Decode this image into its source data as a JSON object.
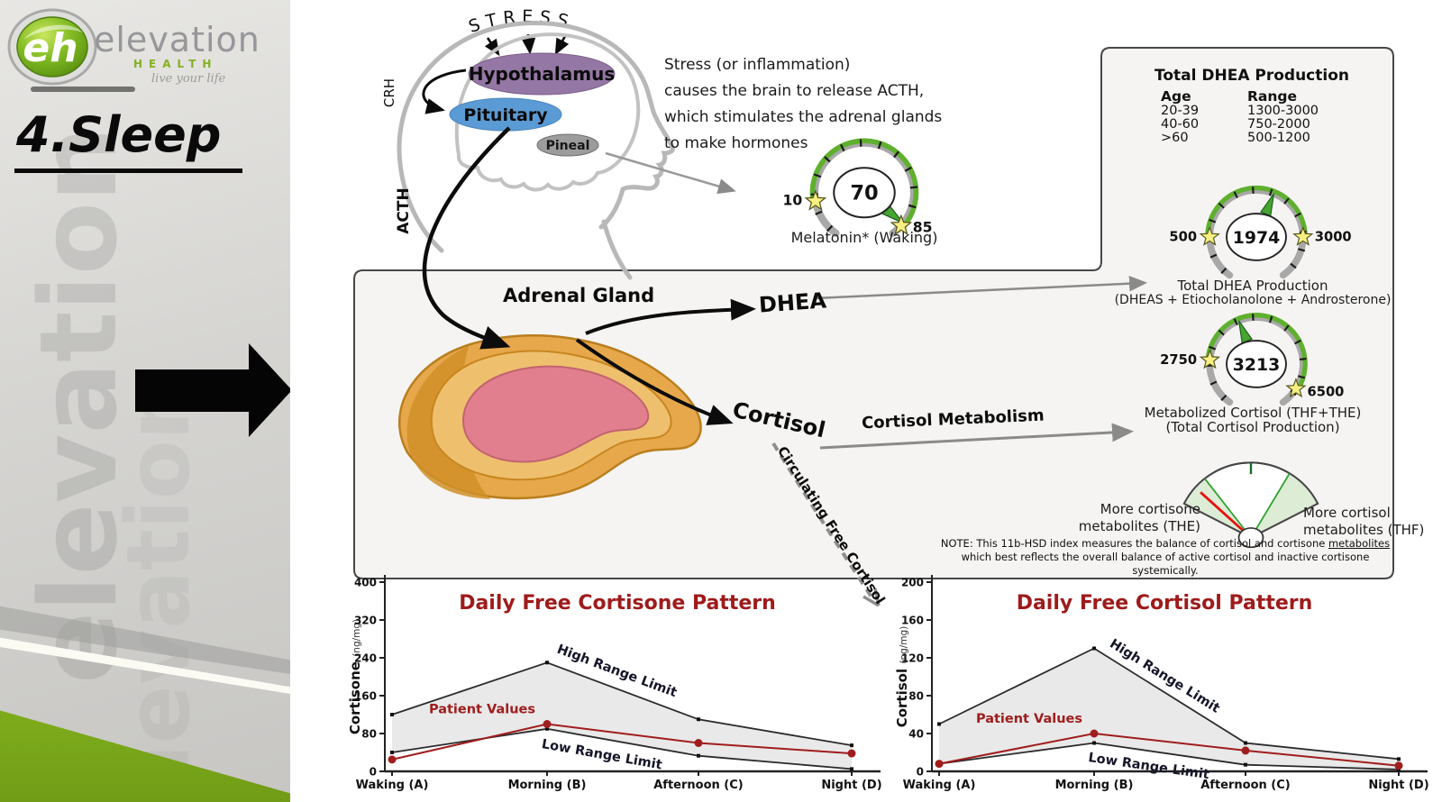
{
  "sidebar": {
    "logo": {
      "emblem": "eh",
      "brand": "elevation",
      "sub": "HEALTH",
      "tagline": "live your life"
    },
    "title": "4.Sleep"
  },
  "hpa": {
    "stress": "STRESS",
    "crh": "CRH",
    "acth": "ACTH",
    "hypothalamus": "Hypothalamus",
    "pituitary": "Pituitary",
    "pineal": "Pineal",
    "paragraph": [
      "Stress (or inflammation)",
      "causes the brain to release ACTH,",
      "which stimulates the adrenal glands",
      "to make hormones"
    ]
  },
  "gauges": {
    "melatonin": {
      "value": "70",
      "low": "10",
      "high": "85",
      "label": "Melatonin* (Waking)"
    },
    "dhea": {
      "value": "1974",
      "low": "500",
      "high": "3000",
      "label1": "Total DHEA Production",
      "label2": "(DHEAS + Etiocholanolone + Androsterone)"
    },
    "metabolized": {
      "value": "3213",
      "low": "2750",
      "high": "6500",
      "label1": "Metabolized Cortisol (THF+THE)",
      "label2": "(Total Cortisol Production)"
    },
    "hsd": {
      "left1": "More cortisone",
      "left2": "metabolites (THE)",
      "right1": "More cortisol",
      "right2": "metabolites (THF)",
      "note1_pre": "NOTE: This 11b-HSD index measures the balance of cortisol and cortisone ",
      "note1_u": "metabolites",
      "note2": "which best reflects the overall balance of active cortisol and inactive cortisone systemically."
    },
    "accent_green": "#5fb02e",
    "star_yellow": "#f8ef82"
  },
  "dhea_panel": {
    "title": "Total DHEA Production",
    "col_age": "Age",
    "col_range": "Range",
    "rows": [
      [
        "20-39",
        "1300-3000"
      ],
      [
        "40-60",
        "750-2000"
      ],
      [
        ">60",
        "500-1200"
      ]
    ]
  },
  "adrenal": {
    "label": "Adrenal Gland",
    "dhea": "DHEA",
    "cortisol": "Cortisol",
    "metabolism": "Cortisol Metabolism",
    "circulating": "Circulating Free Cortisol"
  },
  "chart_data": [
    {
      "type": "line",
      "title": "Daily Free Cortisone Pattern",
      "title_color": "#9e1b1b",
      "ylabel": "Cortisone",
      "yunit": "(ng/mg)",
      "ylim": [
        0,
        400
      ],
      "yticks": [
        0,
        80,
        160,
        240,
        320,
        400
      ],
      "categories": [
        "Waking (A)",
        "Morning (B)",
        "Afternoon (C)",
        "Night (D)"
      ],
      "series": [
        {
          "name": "High Range Limit",
          "values": [
            120,
            230,
            110,
            55
          ],
          "color": "#2b2b2b"
        },
        {
          "name": "Patient Values",
          "values": [
            25,
            100,
            60,
            38
          ],
          "color": "#a01d1d"
        },
        {
          "name": "Low Range Limit",
          "values": [
            40,
            90,
            33,
            5
          ],
          "color": "#2b2b2b"
        }
      ],
      "band": true,
      "grid": false,
      "legend_position": "inline"
    },
    {
      "type": "line",
      "title": "Daily Free Cortisol Pattern",
      "title_color": "#9e1b1b",
      "ylabel": "Cortisol",
      "yunit": "(ng/mg)",
      "ylim": [
        0,
        200
      ],
      "yticks": [
        0,
        40,
        80,
        120,
        160,
        200
      ],
      "categories": [
        "Waking (A)",
        "Morning (B)",
        "Afternoon (C)",
        "Night (D)"
      ],
      "series": [
        {
          "name": "High Range Limit",
          "values": [
            50,
            130,
            30,
            13
          ],
          "color": "#2b2b2b"
        },
        {
          "name": "Patient Values",
          "values": [
            8,
            40,
            22,
            6
          ],
          "color": "#a01d1d"
        },
        {
          "name": "Low Range Limit",
          "values": [
            8,
            30,
            7,
            2
          ],
          "color": "#2b2b2b"
        }
      ],
      "band": true,
      "grid": false,
      "legend_position": "inline"
    }
  ]
}
